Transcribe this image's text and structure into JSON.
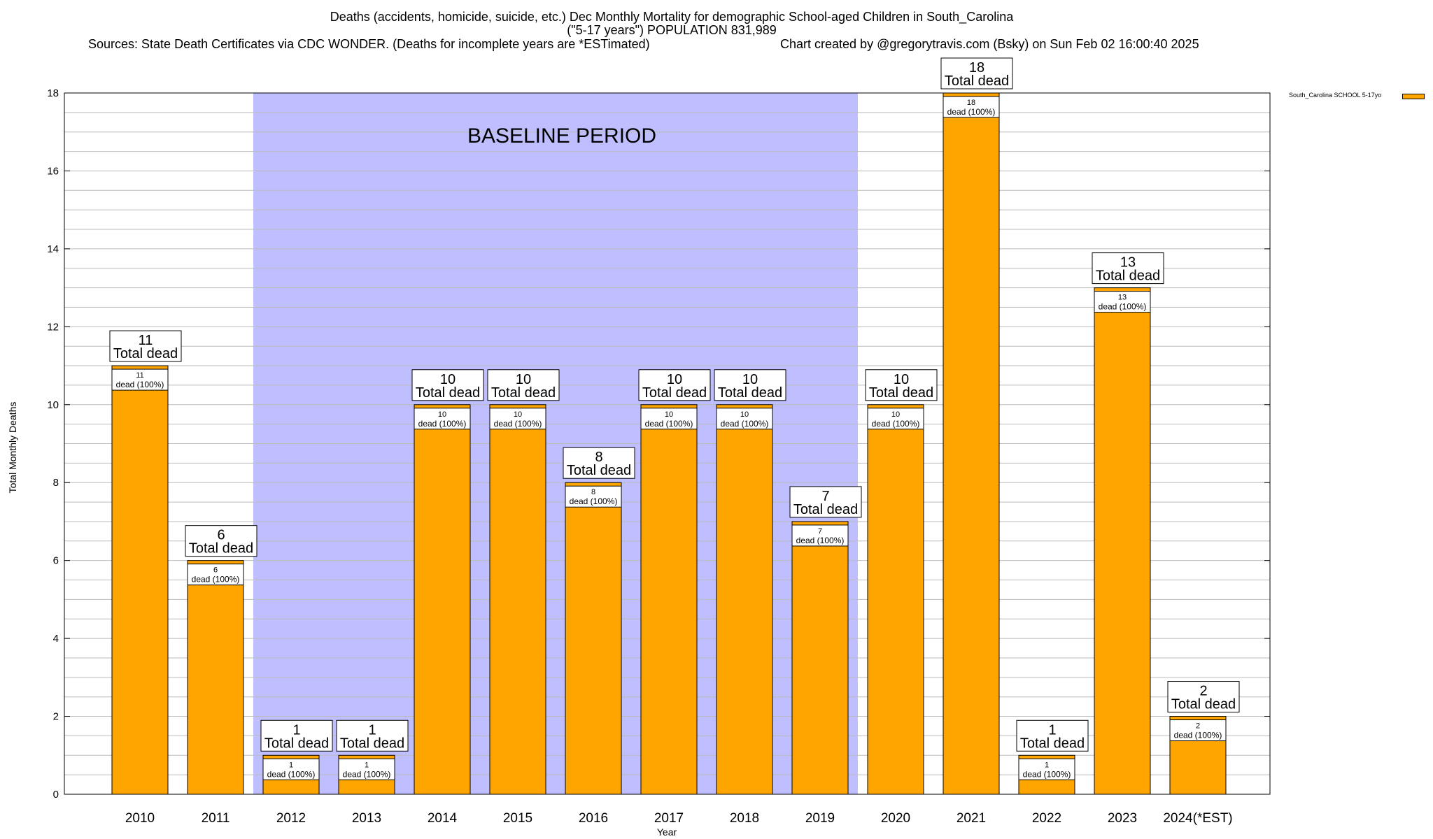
{
  "title_line1": "Deaths (accidents, homicide, suicide, etc.) Dec Monthly Mortality for demographic School-aged Children in South_Carolina",
  "title_line2": "(\"5-17 years\") POPULATION 831,989",
  "sources": "Sources: State Death Certificates via CDC WONDER. (Deaths for incomplete years are *ESTimated)",
  "credit": "Chart created by @gregorytravis.com (Bsky) on Sun Feb 02 16:00:40 2025",
  "colors": {
    "bar": "#FFA500",
    "baseline_shade": "#BFBFFF",
    "grid": "#BBBBBB"
  },
  "chart_data": {
    "type": "bar",
    "title": "Deaths (accidents, homicide, suicide, etc.) Dec Monthly Mortality for demographic School-aged Children in South_Carolina",
    "xlabel": "Year",
    "ylabel": "Total Monthly Deaths",
    "ylim": [
      0,
      18
    ],
    "yticks": [
      0,
      2,
      4,
      6,
      8,
      10,
      12,
      14,
      16,
      18
    ],
    "grid": true,
    "legend_position": "top-right",
    "categories": [
      "2010",
      "2011",
      "2012",
      "2013",
      "2014",
      "2015",
      "2016",
      "2017",
      "2018",
      "2019",
      "2020",
      "2021",
      "2022",
      "2023",
      "2024(*EST)"
    ],
    "series": [
      {
        "name": "South_Carolina SCHOOL 5-17yo",
        "values": [
          11,
          6,
          1,
          1,
          10,
          10,
          8,
          10,
          10,
          7,
          10,
          18,
          1,
          13,
          2
        ]
      }
    ],
    "total_label_suffix": "Total dead",
    "inner_label_suffix": "dead (100%)",
    "annotation": {
      "text": "BASELINE PERIOD",
      "shaded_from": "2012",
      "shaded_to": "2019"
    }
  }
}
